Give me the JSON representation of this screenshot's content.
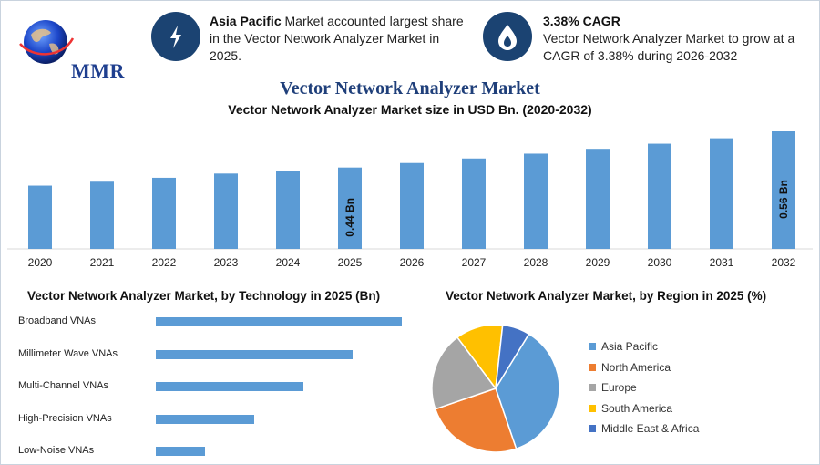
{
  "header": {
    "logo_text": "MMR",
    "stat1": {
      "icon": "lightning-bolt-icon",
      "bold": "Asia Pacific",
      "text": " Market accounted largest share in the Vector Network Analyzer Market in 2025."
    },
    "stat2": {
      "icon": "flame-drop-icon",
      "bold": "3.38% CAGR",
      "text": "Vector Network Analyzer Market to grow at a CAGR of 3.38% during 2026-2032"
    }
  },
  "title": "Vector Network Analyzer Market",
  "colors": {
    "bar": "#5b9bd5",
    "icon_bg": "#1b4372",
    "title": "#1f3f7a"
  },
  "chart_data": [
    {
      "type": "bar",
      "title": "Vector Network Analyzer Market size in USD Bn. (2020-2032)",
      "categories": [
        "2020",
        "2021",
        "2022",
        "2023",
        "2024",
        "2025",
        "2026",
        "2027",
        "2028",
        "2029",
        "2030",
        "2031",
        "2032"
      ],
      "values": [
        0.38,
        0.393,
        0.406,
        0.42,
        0.43,
        0.44,
        0.455,
        0.47,
        0.486,
        0.502,
        0.519,
        0.537,
        0.56
      ],
      "data_labels": {
        "5": "0.44 Bn",
        "12": "0.56 Bn"
      },
      "ylim": [
        0.17,
        0.56
      ],
      "grid": false
    },
    {
      "type": "bar",
      "orientation": "horizontal",
      "title": "Vector Network Analyzer Market, by Technology in 2025 (Bn)",
      "categories": [
        "Broadband VNAs",
        "Millimeter Wave VNAs",
        "Multi-Channel VNAs",
        "High-Precision VNAs",
        "Low-Noise VNAs"
      ],
      "values": [
        5,
        4,
        3,
        2,
        1
      ],
      "grid": false
    },
    {
      "type": "pie",
      "title": "Vector Network Analyzer Market, by Region in 2025 (%)",
      "categories": [
        "Asia Pacific",
        "North America",
        "Europe",
        "South America",
        "Middle East & Africa"
      ],
      "values": [
        36,
        25,
        20,
        12,
        7
      ],
      "colors": [
        "#5b9bd5",
        "#ed7d31",
        "#a5a5a5",
        "#ffc000",
        "#4472c4"
      ],
      "legend": "right"
    }
  ]
}
